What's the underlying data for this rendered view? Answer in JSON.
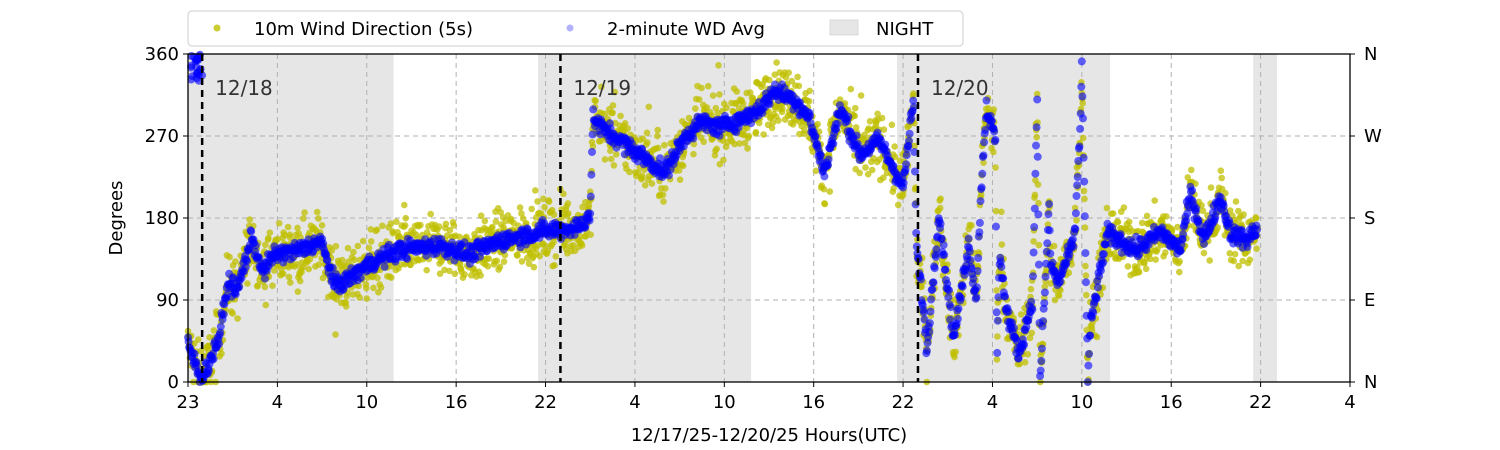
{
  "chart_data": {
    "type": "scatter",
    "xlabel": "12/17/25-12/20/25  Hours(UTC)",
    "ylabel": "Degrees",
    "xlim_hours": [
      0,
      78
    ],
    "ylim": [
      0,
      360
    ],
    "x_ticks_hours": [
      0,
      6,
      12,
      18,
      24,
      30,
      36,
      42,
      48,
      54,
      60,
      66,
      72,
      78
    ],
    "x_tick_labels": [
      "23",
      "4",
      "10",
      "16",
      "22",
      "4",
      "10",
      "16",
      "22",
      "4",
      "10",
      "16",
      "22",
      "4"
    ],
    "y_ticks": [
      0,
      90,
      180,
      270,
      360
    ],
    "y_tick_labels": [
      "0",
      "90",
      "180",
      "270",
      "360"
    ],
    "y2_tick_labels": [
      "N",
      "E",
      "S",
      "W",
      "N"
    ],
    "grid": true,
    "legend": {
      "placement": "top-center",
      "entries": [
        {
          "label": "10m Wind Direction (5s)",
          "color": "#bfbf00",
          "kind": "dot"
        },
        {
          "label": "2-minute WD Avg",
          "color": "#0000ff",
          "kind": "dot"
        },
        {
          "label": "NIGHT",
          "color": "#e6e6e6",
          "kind": "patch"
        }
      ]
    },
    "night_bands_hours": [
      [
        0,
        13.8
      ],
      [
        23.5,
        37.8
      ],
      [
        47.6,
        61.9
      ],
      [
        71.5,
        73.1
      ]
    ],
    "day_markers": [
      {
        "hour": 0.95,
        "label": "12/18"
      },
      {
        "hour": 25,
        "label": "12/19"
      },
      {
        "hour": 49,
        "label": "12/20"
      }
    ],
    "series": [
      {
        "name": "2-minute WD Avg",
        "color": "#0000ff",
        "x": [
          0,
          0.5,
          0.8,
          1.3,
          2.1,
          2.7,
          3.3,
          4.3,
          5,
          5.8,
          7.5,
          8.9,
          9.9,
          10.9,
          12.2,
          14.2,
          16.9,
          18.9,
          20.9,
          23.6,
          26.3,
          27,
          27.2,
          27.7,
          29,
          30.3,
          32,
          33.4,
          34.4,
          35.7,
          37.4,
          38.4,
          39.4,
          40.7,
          41.7,
          42.7,
          43.8,
          45.1,
          46.4,
          48,
          48.7,
          48.9,
          49.3,
          49.6,
          50.4,
          51.4,
          52.4,
          52.9,
          53.3,
          53.6,
          54.2,
          54.3,
          54.5,
          54.9,
          55.8,
          56.7,
          57,
          57.2,
          57.8,
          57.9,
          58.4,
          59.5,
          59.9,
          60,
          60.4,
          60.6,
          61.7,
          63.7,
          65.3,
          66.6,
          67.3,
          68.2,
          69.3,
          70,
          71.1,
          71.8
        ],
        "y": [
          40,
          20,
          5,
          15,
          50,
          110,
          100,
          160,
          120,
          140,
          145,
          155,
          105,
          115,
          130,
          145,
          150,
          140,
          155,
          165,
          170,
          185,
          290,
          280,
          265,
          250,
          230,
          270,
          285,
          280,
          290,
          300,
          320,
          310,
          290,
          230,
          300,
          250,
          265,
          214,
          309,
          148,
          90,
          35,
          185,
          46,
          152,
          90,
          229,
          302,
          265,
          27,
          145,
          80,
          30,
          93,
          313,
          0,
          192,
          130,
          109,
          156,
          284,
          353,
          5,
          65,
          163,
          145,
          165,
          145,
          207,
          156,
          203,
          163,
          156,
          170
        ]
      },
      {
        "name": "10m Wind Direction (5s)",
        "color": "#bfbf00",
        "note": "5s samples scatter around the 2-minute average, roughly ±40°"
      }
    ]
  }
}
